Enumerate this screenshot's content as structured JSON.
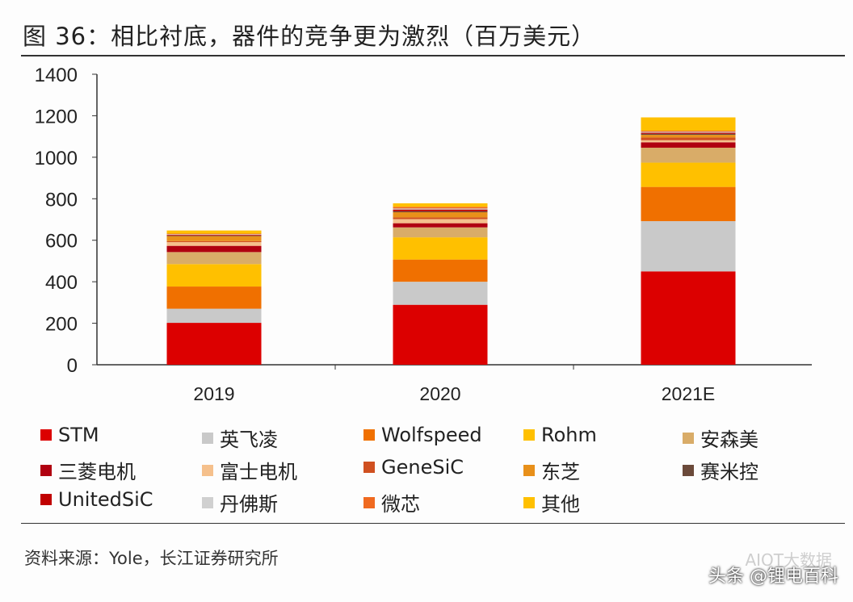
{
  "title": "图 36：相比衬底，器件的竞争更为激烈（百万美元）",
  "source": "资料来源：Yole，长江证券研究所",
  "watermark": "头条 @锂电百科",
  "watermark2": "AIOT大数据",
  "chart_data": {
    "type": "bar",
    "stacked": true,
    "categories": [
      "2019",
      "2020",
      "2021E"
    ],
    "ylim": [
      0,
      1400
    ],
    "yticks": [
      0,
      200,
      400,
      600,
      800,
      1000,
      1200,
      1400
    ],
    "grid": false,
    "legend_position": "bottom",
    "series": [
      {
        "name": "STM",
        "color": "#dc0000",
        "values": [
          202,
          289,
          450
        ]
      },
      {
        "name": "英飞凌",
        "color": "#c9c9c9",
        "values": [
          68,
          111,
          242
        ]
      },
      {
        "name": "Wolfspeed",
        "color": "#f07000",
        "values": [
          107,
          107,
          165
        ]
      },
      {
        "name": "Rohm",
        "color": "#ffc000",
        "values": [
          108,
          107,
          117
        ]
      },
      {
        "name": "安森美",
        "color": "#d9ac68",
        "values": [
          58,
          48,
          72
        ]
      },
      {
        "name": "三菱电机",
        "color": "#b00010",
        "values": [
          30,
          20,
          26
        ]
      },
      {
        "name": "富士电机",
        "color": "#f5c08c",
        "values": [
          18,
          20,
          10
        ]
      },
      {
        "name": "GeneSiC",
        "color": "#d05020",
        "values": [
          5,
          8,
          13
        ]
      },
      {
        "name": "东芝",
        "color": "#e8901a",
        "values": [
          24,
          25,
          13
        ]
      },
      {
        "name": "赛米控",
        "color": "#6b4a3a",
        "values": [
          3,
          5,
          5
        ]
      },
      {
        "name": "UnitedSiC",
        "color": "#c00000",
        "values": [
          3,
          8,
          5
        ]
      },
      {
        "name": "丹佛斯",
        "color": "#d0d0d0",
        "values": [
          3,
          5,
          5
        ]
      },
      {
        "name": "微芯",
        "color": "#f06a20",
        "values": [
          3,
          8,
          5
        ]
      },
      {
        "name": "其他",
        "color": "#ffc000",
        "values": [
          15,
          17,
          64
        ]
      }
    ]
  }
}
